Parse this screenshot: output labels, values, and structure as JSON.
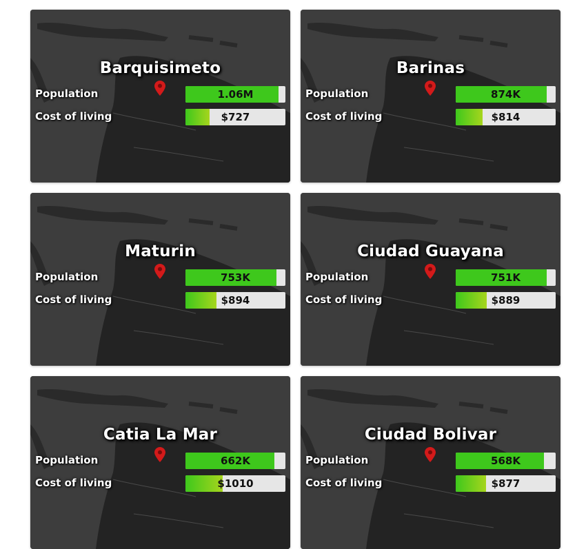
{
  "colors": {
    "card_bg": "#3c3c3c",
    "bar_bg": "#e6e6e6",
    "population_fill": "#3ec81c",
    "cost_fill_start": "#3ec81c",
    "cost_fill_end": "#a6d51d",
    "pin": "#d31a1a"
  },
  "labels": {
    "population": "Population",
    "cost_of_living": "Cost of living"
  },
  "cards": [
    {
      "city": "Barquisimeto",
      "population": "1.06M",
      "population_fraction": 0.93,
      "cost": "$727",
      "cost_fraction": 0.24
    },
    {
      "city": "Barinas",
      "population": "874K",
      "population_fraction": 0.91,
      "cost": "$814",
      "cost_fraction": 0.27
    },
    {
      "city": "Maturin",
      "population": "753K",
      "population_fraction": 0.91,
      "cost": "$894",
      "cost_fraction": 0.31
    },
    {
      "city": "Ciudad Guayana",
      "population": "751K",
      "population_fraction": 0.91,
      "cost": "$889",
      "cost_fraction": 0.31
    },
    {
      "city": "Catia La Mar",
      "population": "662K",
      "population_fraction": 0.89,
      "cost": "$1010",
      "cost_fraction": 0.37
    },
    {
      "city": "Ciudad Bolivar",
      "population": "568K",
      "population_fraction": 0.88,
      "cost": "$877",
      "cost_fraction": 0.3
    }
  ]
}
